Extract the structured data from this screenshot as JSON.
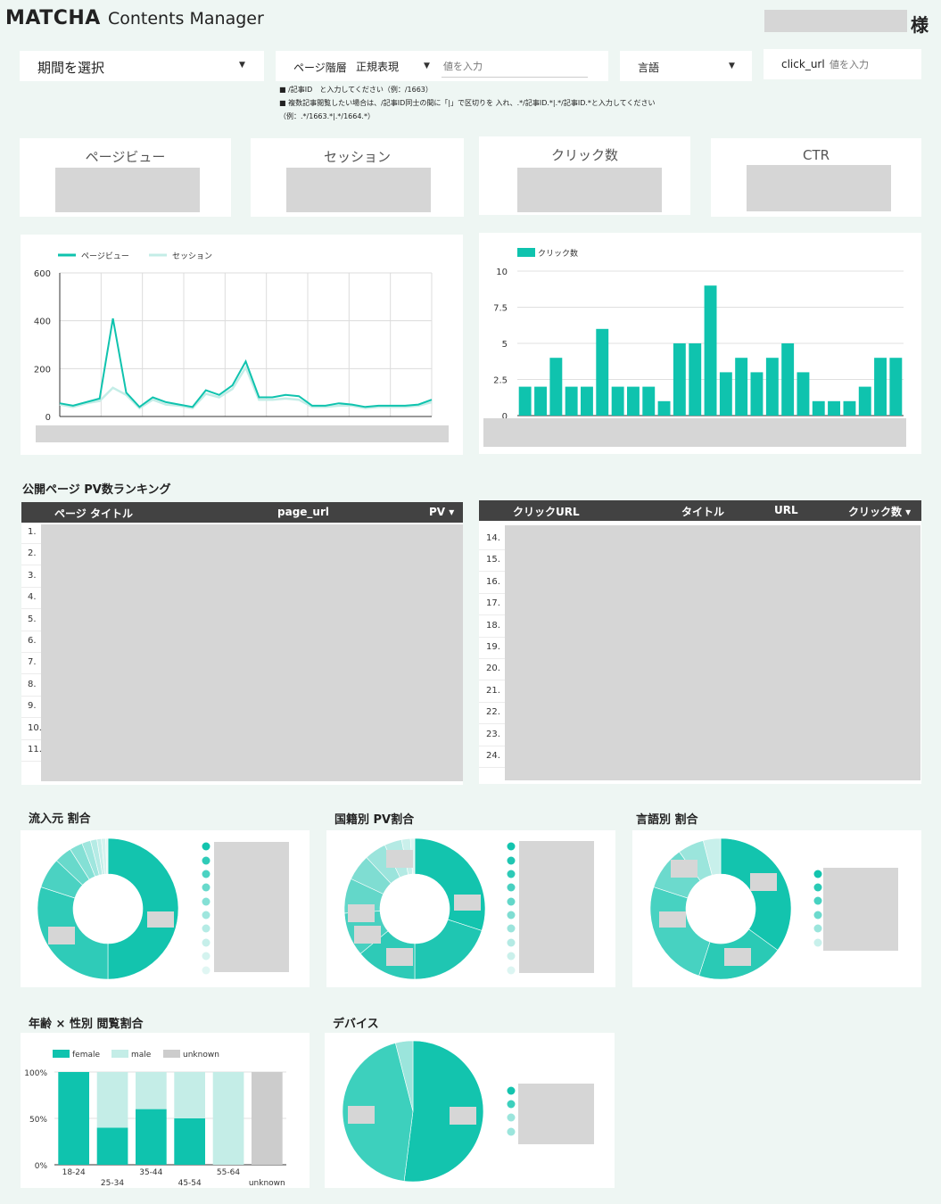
{
  "header": {
    "brand": "MATCHA",
    "subtitle": "Contents Manager",
    "honorific": "様"
  },
  "filters": {
    "period": {
      "label": "期間を選択"
    },
    "page_hierarchy": {
      "label": "ページ階層",
      "mode": "正規表現",
      "placeholder": "値を入力"
    },
    "language": {
      "label": "言語"
    },
    "click_url": {
      "label": "click_url",
      "placeholder": "値を入力"
    }
  },
  "notes": {
    "line1": "■ /記事ID　と入力してください（例：/1663）",
    "line2": "■ 複数記事閲覧したい場合は、/記事ID同士の間に「|」で区切りを 入れ、.*/記事ID.*|.*/記事ID.*と入力してください",
    "line3": "（例：.*/1663.*|.*/1664.*）"
  },
  "kpis": [
    {
      "label": "ページビュー"
    },
    {
      "label": "セッション"
    },
    {
      "label": "クリック数"
    },
    {
      "label": "CTR"
    }
  ],
  "colors": {
    "primary": "#0fc3ae",
    "light": "#c4ede7",
    "unknown": "#cccccc",
    "table_header": "#424242",
    "background": "#eef6f3"
  },
  "chart_data": [
    {
      "type": "line",
      "series": [
        {
          "name": "ページビュー",
          "values": [
            55,
            45,
            60,
            75,
            410,
            100,
            40,
            80,
            60,
            50,
            40,
            110,
            90,
            130,
            230,
            80,
            80,
            90,
            85,
            45,
            45,
            55,
            50,
            40,
            45,
            45,
            45,
            50,
            70
          ]
        },
        {
          "name": "セッション",
          "values": [
            50,
            40,
            55,
            65,
            120,
            90,
            35,
            70,
            50,
            45,
            35,
            95,
            80,
            115,
            205,
            70,
            70,
            75,
            70,
            40,
            40,
            45,
            45,
            35,
            40,
            40,
            40,
            45,
            60
          ]
        }
      ],
      "ylim": [
        0,
        600
      ],
      "yticks": [
        "0",
        "200",
        "400",
        "600"
      ],
      "grid": true,
      "legend": "top-left"
    },
    {
      "type": "bar",
      "series": [
        {
          "name": "クリック数",
          "values": [
            2,
            2,
            4,
            2,
            2,
            6,
            2,
            2,
            2,
            1,
            5,
            5,
            9,
            3,
            4,
            3,
            4,
            5,
            3,
            1,
            1,
            1,
            2,
            4,
            4
          ]
        }
      ],
      "ylim": [
        0,
        10
      ],
      "yticks": [
        "0",
        "2.5",
        "5",
        "7.5",
        "10"
      ],
      "grid": true,
      "legend": "top-left"
    },
    {
      "type": "pie",
      "slices": [
        50,
        30,
        7,
        4,
        3,
        2,
        1.5,
        1,
        1,
        0.5
      ],
      "legend": "right"
    },
    {
      "type": "pie",
      "slices": [
        30,
        20,
        14,
        10,
        8,
        6,
        5,
        4,
        2,
        1
      ],
      "legend": "right"
    },
    {
      "type": "pie",
      "slices": [
        35,
        20,
        25,
        10,
        6,
        4
      ],
      "legend": "right"
    },
    {
      "type": "bar",
      "stacked": true,
      "categories": [
        "18-24",
        "25-34",
        "35-44",
        "45-54",
        "55-64",
        "unknown"
      ],
      "series": [
        {
          "name": "female",
          "values": [
            100,
            40,
            60,
            50,
            0,
            0
          ]
        },
        {
          "name": "male",
          "values": [
            0,
            60,
            40,
            50,
            100,
            0
          ]
        },
        {
          "name": "unknown",
          "values": [
            0,
            0,
            0,
            0,
            0,
            100
          ]
        }
      ],
      "ylim": [
        0,
        100
      ],
      "yticks": [
        "0%",
        "50%",
        "100%"
      ],
      "legend": "top-left"
    },
    {
      "type": "pie",
      "slices": [
        52,
        44,
        4
      ],
      "legend": "right"
    }
  ],
  "tables": {
    "ranking": {
      "title": "公開ページ PV数ランキング",
      "columns": [
        "ページ タイトル",
        "page_url",
        "PV ▾"
      ],
      "rows": [
        "1.",
        "2.",
        "3.",
        "4.",
        "5.",
        "6.",
        "7.",
        "8.",
        "9.",
        "10.",
        "11."
      ]
    },
    "clicks": {
      "columns": [
        "クリックURL",
        "タイトル",
        "URL",
        "クリック数 ▾"
      ],
      "rows": [
        "14.",
        "15.",
        "16.",
        "17.",
        "18.",
        "19.",
        "20.",
        "21.",
        "22.",
        "23.",
        "24."
      ]
    }
  },
  "sections": {
    "source": "流入元 割合",
    "nationality": "国籍別 PV割合",
    "language": "言語別 割合",
    "age_gender": "年齢 × 性別 閲覧割合",
    "device": "デバイス"
  }
}
